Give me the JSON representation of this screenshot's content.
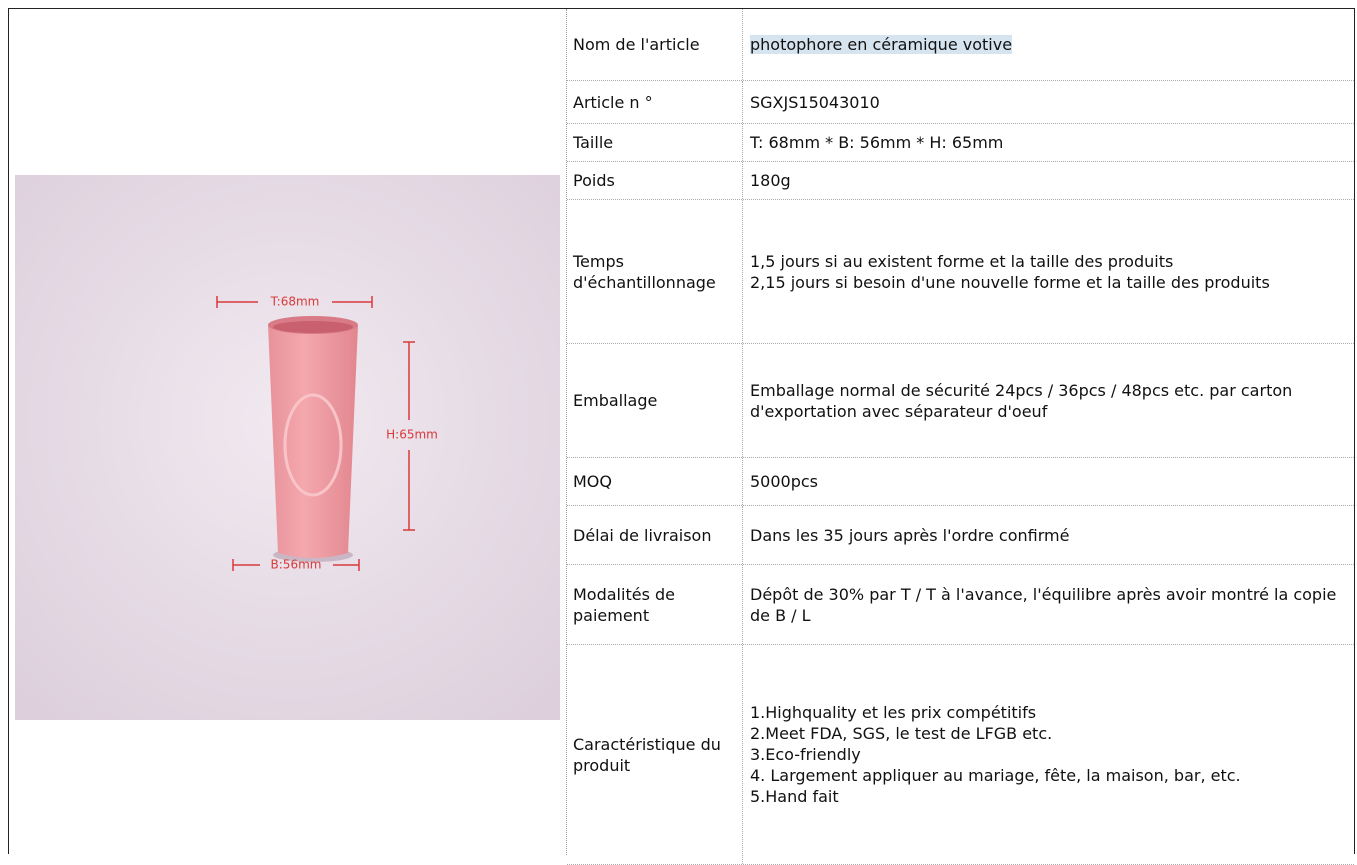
{
  "image": {
    "labels": {
      "top": "T:68mm",
      "height": "H:65mm",
      "bottom": "B:56mm"
    }
  },
  "table": {
    "rows": [
      {
        "label": "Nom de l'article",
        "value": [
          "photophore en céramique votive"
        ]
      },
      {
        "label": "Article n °",
        "value": [
          "SGXJS15043010"
        ]
      },
      {
        "label": "Taille",
        "value": [
          "T: 68mm * B: 56mm * H: 65mm"
        ]
      },
      {
        "label": "Poids",
        "value": [
          "180g"
        ]
      },
      {
        "label": "Temps d'échantillonnage",
        "value": [
          "1,5 jours si au existent forme et la taille des produits",
          "2,15 jours si besoin d'une nouvelle forme et la taille des produits"
        ]
      },
      {
        "label": "Emballage",
        "value": [
          "Emballage normal de sécurité 24pcs / 36pcs / 48pcs etc. par carton d'exportation avec séparateur d'oeuf"
        ]
      },
      {
        "label": "MOQ",
        "value": [
          "5000pcs"
        ]
      },
      {
        "label": "Délai de livraison",
        "value": [
          "Dans les 35 jours après l'ordre confirmé"
        ]
      },
      {
        "label": "Modalités de paiement",
        "value": [
          "Dépôt de 30% par T / T à l'avance, l'équilibre après avoir montré la copie de B / L"
        ]
      },
      {
        "label": "Caractéristique du produit",
        "value": [
          "1.Highquality et les prix compétitifs",
          "2.Meet FDA, SGS, le test de LFGB etc.",
          "3.Eco-friendly",
          "4. Largement appliquer au mariage, fête, la maison, bar, etc.",
          "5.Hand fait"
        ]
      }
    ]
  }
}
